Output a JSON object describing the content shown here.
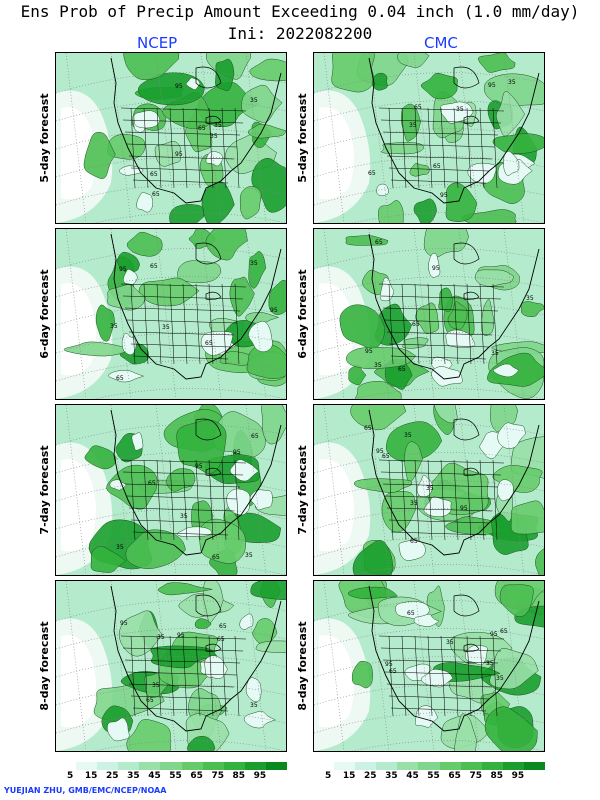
{
  "title": "Ens Prob of Precip Amount Exceeding 0.04 inch (1.0 mm/day)",
  "subtitle": "Ini: 2022082200",
  "models": [
    "NCEP",
    "CMC"
  ],
  "rows": [
    "5-day forecast",
    "6-day forecast",
    "7-day forecast",
    "8-day forecast"
  ],
  "colorbar": {
    "labels": [
      "5",
      "15",
      "25",
      "35",
      "45",
      "55",
      "65",
      "75",
      "85",
      "95"
    ],
    "colors": [
      "#ffffff",
      "#e6faf5",
      "#ccf2e6",
      "#b3ebcc",
      "#99e0a8",
      "#80d68c",
      "#66cc6b",
      "#4dbf52",
      "#33b23d",
      "#1a9e2e",
      "#0a8a1e"
    ]
  },
  "contour_labels": [
    "35",
    "65",
    "95"
  ],
  "credit": "YUEJIAN ZHU, GMB/EMC/NCEP/NOAA"
}
